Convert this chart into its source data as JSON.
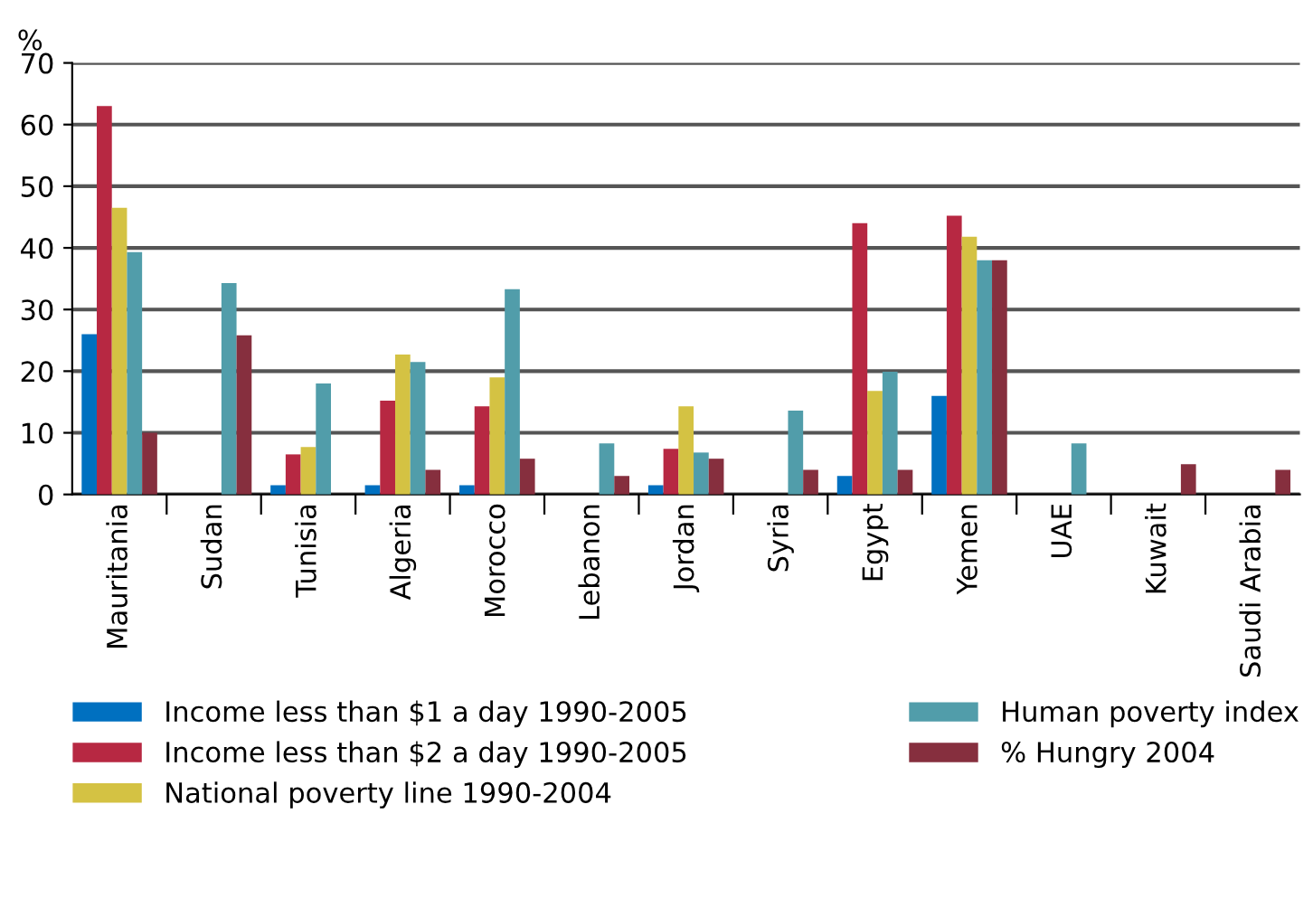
{
  "chart_data": {
    "type": "bar",
    "ylabel": "%",
    "categories": [
      "Mauritania",
      "Sudan",
      "Tunisia",
      "Algeria",
      "Morocco",
      "Lebanon",
      "Jordan",
      "Syria",
      "Egypt",
      "Yemen",
      "UAE",
      "Kuwait",
      "Saudi Arabia"
    ],
    "series": [
      {
        "name": "Income less than $1 a day 1990-2005",
        "color": "#0070c0",
        "values": [
          26,
          null,
          1.5,
          1.5,
          1.5,
          null,
          1.5,
          null,
          3,
          16,
          null,
          null,
          null
        ]
      },
      {
        "name": "Income less than $2 a day 1990-2005",
        "color": "#b72842",
        "values": [
          63,
          null,
          6.5,
          15.2,
          14.3,
          null,
          7.4,
          null,
          44,
          45.2,
          null,
          null,
          null
        ]
      },
      {
        "name": "National poverty line 1990-2004",
        "color": "#d4c243",
        "values": [
          46.5,
          null,
          7.7,
          22.7,
          19,
          null,
          14.3,
          null,
          16.8,
          41.8,
          null,
          null,
          null
        ]
      },
      {
        "name": "Human poverty index",
        "color": "#519daa",
        "values": [
          39.3,
          34.3,
          18,
          21.5,
          33.3,
          8.3,
          6.8,
          13.6,
          19.9,
          38,
          8.3,
          null,
          null
        ]
      },
      {
        "name": "% Hungry 2004",
        "color": "#862f3e",
        "values": [
          10,
          25.8,
          null,
          4,
          5.8,
          3,
          5.8,
          4,
          4,
          38,
          null,
          4.9,
          4
        ]
      }
    ],
    "ylim": [
      0,
      70
    ],
    "yticks": [
      0,
      10,
      20,
      30,
      40,
      50,
      60,
      70
    ],
    "grid": "y",
    "legend": "bottom"
  }
}
